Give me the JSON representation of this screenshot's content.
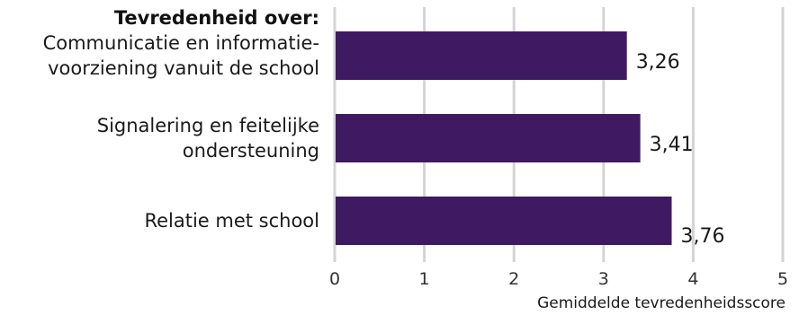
{
  "chart_data": {
    "type": "bar",
    "orientation": "horizontal",
    "heading": "Tevredenheid over:",
    "categories": [
      [
        "Communicatie en informatie-",
        "voorziening vanuit de school"
      ],
      [
        "Signalering en feitelijke",
        "ondersteuning"
      ],
      [
        "Relatie met school"
      ]
    ],
    "values": [
      3.26,
      3.41,
      3.76
    ],
    "value_labels": [
      "3,26",
      "3,41",
      "3,76"
    ],
    "xlim": [
      0,
      5
    ],
    "xticks": [
      0,
      1,
      2,
      3,
      4,
      5
    ],
    "xtick_labels": [
      "0",
      "1",
      "2",
      "3",
      "4",
      "5"
    ],
    "xlabel": "Gemiddelde tevredenheidsscore",
    "grid": true,
    "bar_color": "#3f1a63"
  }
}
